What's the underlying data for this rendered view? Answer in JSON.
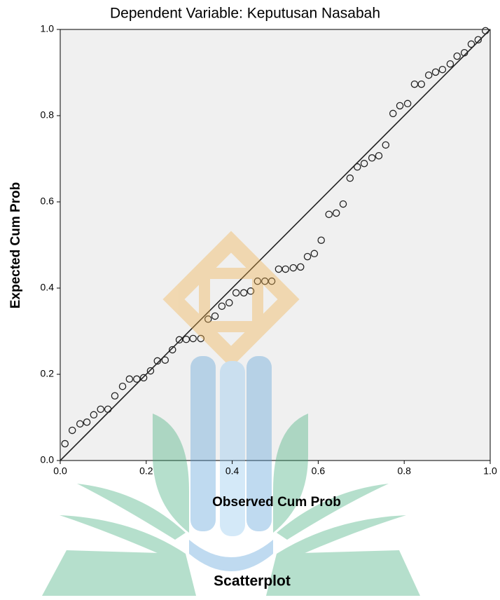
{
  "chart_data": {
    "type": "scatter",
    "title": "Dependent Variable: Keputusan Nasabah",
    "x_label": "Observed Cum Prob",
    "y_label": "Expected Cum Prob",
    "caption": "Scatterplot",
    "marker_color": "#222222",
    "background": "#f0f0f0",
    "xlim": [
      0,
      1
    ],
    "ylim": [
      0,
      1
    ],
    "xticks": [
      {
        "value": 0,
        "label": "0.0"
      },
      {
        "value": 0.2,
        "label": "0.2"
      },
      {
        "value": 0.4,
        "label": "0.4"
      },
      {
        "value": 0.6,
        "label": "0.6"
      },
      {
        "value": 0.8,
        "label": "0.8"
      },
      {
        "value": 1,
        "label": "1.0"
      }
    ],
    "yticks": [
      {
        "value": 0,
        "label": "0.0"
      },
      {
        "value": 0.2,
        "label": "0.2"
      },
      {
        "value": 0.4,
        "label": "0.4"
      },
      {
        "value": 0.6,
        "label": "0.6"
      },
      {
        "value": 0.8,
        "label": "0.8"
      },
      {
        "value": 1,
        "label": "1.0"
      }
    ],
    "x": [
      0.011,
      0.028,
      0.046,
      0.062,
      0.078,
      0.094,
      0.111,
      0.127,
      0.145,
      0.161,
      0.178,
      0.194,
      0.21,
      0.226,
      0.244,
      0.261,
      0.277,
      0.293,
      0.309,
      0.327,
      0.344,
      0.36,
      0.376,
      0.393,
      0.409,
      0.427,
      0.443,
      0.459,
      0.476,
      0.492,
      0.508,
      0.524,
      0.542,
      0.559,
      0.575,
      0.591,
      0.607,
      0.625,
      0.642,
      0.658,
      0.674,
      0.691,
      0.707,
      0.725,
      0.741,
      0.757,
      0.774,
      0.79,
      0.808,
      0.824,
      0.84,
      0.857,
      0.873,
      0.889,
      0.907,
      0.923,
      0.94,
      0.956,
      0.972,
      0.989
    ],
    "values": [
      0.039,
      0.07,
      0.085,
      0.089,
      0.106,
      0.119,
      0.119,
      0.15,
      0.172,
      0.189,
      0.189,
      0.192,
      0.208,
      0.231,
      0.233,
      0.257,
      0.28,
      0.281,
      0.283,
      0.283,
      0.328,
      0.335,
      0.358,
      0.366,
      0.389,
      0.389,
      0.393,
      0.416,
      0.416,
      0.416,
      0.444,
      0.444,
      0.447,
      0.449,
      0.473,
      0.48,
      0.511,
      0.571,
      0.574,
      0.595,
      0.655,
      0.681,
      0.689,
      0.702,
      0.707,
      0.732,
      0.805,
      0.823,
      0.828,
      0.873,
      0.873,
      0.894,
      0.901,
      0.907,
      0.92,
      0.938,
      0.946,
      0.966,
      0.976,
      0.997
    ]
  }
}
